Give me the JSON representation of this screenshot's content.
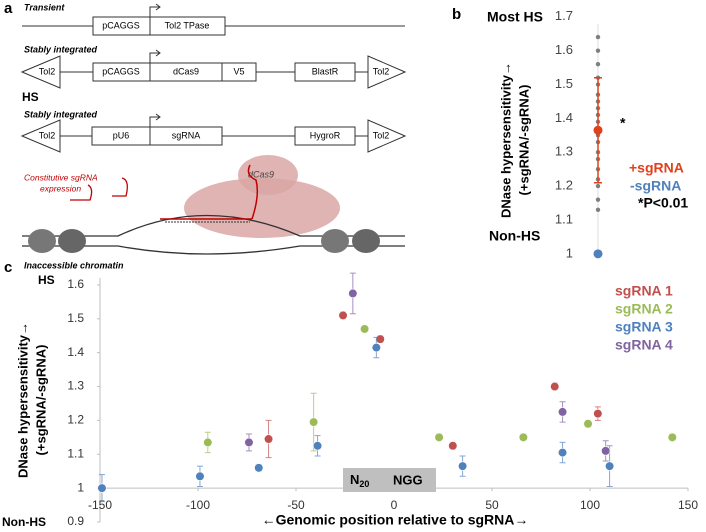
{
  "diagram": {
    "label": "a",
    "side_label": "HS",
    "constructs": [
      {
        "heading": "Transient",
        "parts": [
          "pCAGGS",
          "Tol2 TPase"
        ]
      },
      {
        "heading": "Stably integrated",
        "parts": [
          "Tol2",
          "pCAGGS",
          "dCas9",
          "V5",
          "BlastR",
          "Tol2"
        ]
      },
      {
        "heading": "Stably integrated",
        "parts": [
          "Tol2",
          "pU6",
          "sgRNA",
          "HygroR",
          "Tol2"
        ]
      }
    ],
    "illustration": {
      "sgrna_label": [
        "Constitutive sgRNA",
        "expression"
      ],
      "protein_label": "dCas9",
      "caption": "Inaccessible chromatin"
    }
  },
  "chart_data": [
    {
      "type": "dot",
      "panel_label": "b",
      "top_label": "Most HS",
      "bottom_label": "Non-HS",
      "y_label": [
        "DNase hypersensitivity→",
        "(+sgRNA/-sgRNA)"
      ],
      "ylim": [
        0.97,
        1.72
      ],
      "yticks": [
        1,
        1.1,
        1.2,
        1.3,
        1.4,
        1.5,
        1.6,
        1.7
      ],
      "points": {
        "color": "#7f7f7f",
        "values": [
          1.64,
          1.6,
          1.56,
          1.52,
          1.5,
          1.47,
          1.45,
          1.43,
          1.41,
          1.39,
          1.37,
          1.35,
          1.33,
          1.3,
          1.28,
          1.25,
          1.22,
          1.2,
          1.16,
          1.13
        ]
      },
      "series": [
        {
          "name": "+sgRNA",
          "color": "#e0401c",
          "values": [
            1.365
          ],
          "errors": [
            0.155
          ]
        },
        {
          "name": "-sgRNA",
          "color": "#4f81bd",
          "values": [
            1
          ]
        }
      ],
      "annotation": "*",
      "note": "*P<0.01"
    },
    {
      "type": "scatter",
      "panel_label": "c",
      "top_label": "HS",
      "bottom_label": "Non-HS",
      "y_label": [
        "DNase hypersensitivity→",
        "(+sgRNA/-sgRNA)"
      ],
      "x_label": "←Genomic position relative to sgRNA→",
      "xlim": [
        -150,
        150
      ],
      "xticks": [
        -150,
        -100,
        -50,
        0,
        50,
        100,
        150
      ],
      "ylim": [
        0.9,
        1.65
      ],
      "yticks": [
        0.9,
        1,
        1.1,
        1.2,
        1.3,
        1.4,
        1.5,
        1.6
      ],
      "box_labels": [
        {
          "text": "N",
          "subscript": "20"
        },
        "NGG"
      ],
      "series": [
        {
          "name": "sgRNA 1",
          "color": "#c0504d",
          "x": [
            -64,
            -26,
            -7,
            30,
            82,
            104
          ],
          "values": [
            1.145,
            1.51,
            1.44,
            1.125,
            1.3,
            1.22
          ],
          "errors": [
            0.055,
            0.01,
            0.01,
            0.01,
            0.01,
            0.02
          ]
        },
        {
          "name": "sgRNA 2",
          "color": "#9bbb59",
          "x": [
            -95,
            -41,
            -15,
            23,
            66,
            99,
            142
          ],
          "values": [
            1.135,
            1.195,
            1.47,
            1.15,
            1.15,
            1.19,
            1.15
          ],
          "errors": [
            0.03,
            0.085,
            0.01,
            0.01,
            0.01,
            0.01,
            0.01
          ]
        },
        {
          "name": "sgRNA 3",
          "color": "#4f81bd",
          "x": [
            -149,
            -99,
            -69,
            -39,
            -9,
            35,
            86,
            110
          ],
          "values": [
            1,
            1.035,
            1.06,
            1.125,
            1.415,
            1.065,
            1.105,
            1.065
          ],
          "errors": [
            0.04,
            0.03,
            0.01,
            0.03,
            0.03,
            0.03,
            0.03,
            0.06
          ]
        },
        {
          "name": "sgRNA 4",
          "color": "#8064a2",
          "x": [
            -74,
            -21,
            86,
            108
          ],
          "values": [
            1.135,
            1.575,
            1.225,
            1.11
          ],
          "errors": [
            0.025,
            0.06,
            0.03,
            0.03
          ]
        }
      ]
    }
  ]
}
